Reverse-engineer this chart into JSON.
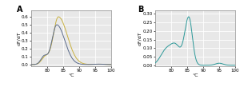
{
  "panel_A": {
    "label": "A",
    "xlabel": "°C",
    "ylabel": "dF/dT",
    "xlim": [
      75,
      100
    ],
    "ylim": [
      -0.02,
      0.68
    ],
    "yticks": [
      0.0,
      0.1,
      0.2,
      0.3,
      0.4,
      0.5,
      0.6
    ],
    "xticks": [
      80,
      85,
      90,
      95,
      100
    ],
    "curve1_color": "#5a6a8a",
    "curve2_color": "#c8b040",
    "background_color": "#e8e8e8"
  },
  "panel_B": {
    "label": "B",
    "xlabel": "°C",
    "ylabel": "dF/dT",
    "xlim": [
      75,
      100
    ],
    "ylim": [
      -0.005,
      0.32
    ],
    "yticks": [
      0.0,
      0.05,
      0.1,
      0.15,
      0.2,
      0.25,
      0.3
    ],
    "xticks": [
      80,
      85,
      90,
      95,
      100
    ],
    "curve_color": "#2a9898",
    "background_color": "#e8e8e8"
  }
}
